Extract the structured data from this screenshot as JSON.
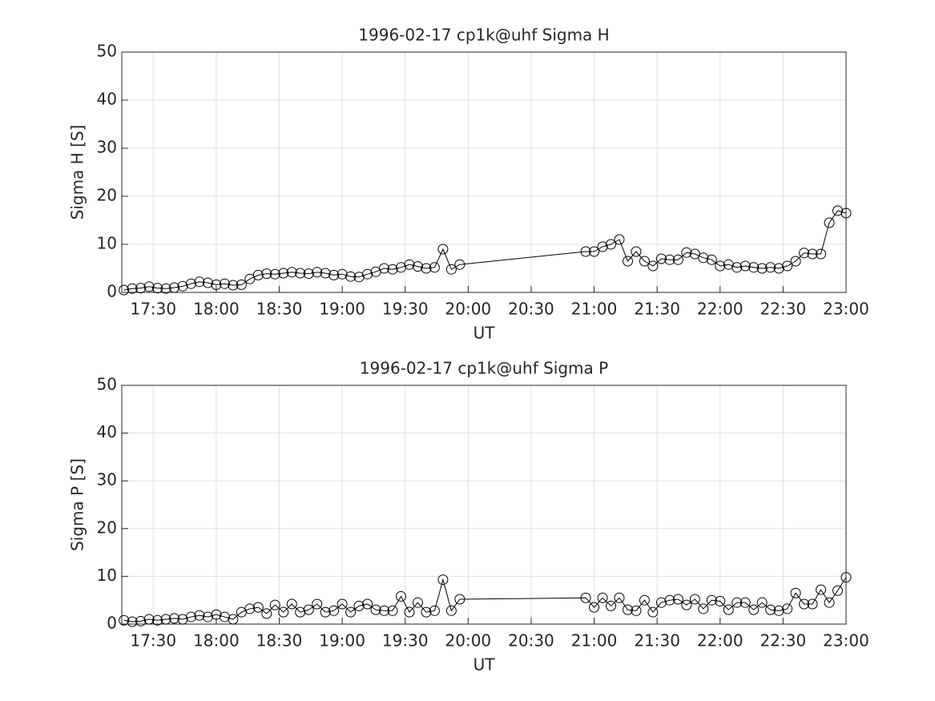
{
  "chart_data": [
    {
      "type": "line",
      "title": "1996-02-17  cp1k@uhf Sigma H",
      "xlabel": "UT",
      "ylabel": "Sigma H [S]",
      "x": [
        "17:16",
        "17:20",
        "17:24",
        "17:28",
        "17:32",
        "17:36",
        "17:40",
        "17:44",
        "17:48",
        "17:52",
        "17:56",
        "18:00",
        "18:04",
        "18:08",
        "18:12",
        "18:16",
        "18:20",
        "18:24",
        "18:28",
        "18:32",
        "18:36",
        "18:40",
        "18:44",
        "18:48",
        "18:52",
        "18:56",
        "19:00",
        "19:04",
        "19:08",
        "19:12",
        "19:16",
        "19:20",
        "19:24",
        "19:28",
        "19:32",
        "19:36",
        "19:40",
        "19:44",
        "19:48",
        "19:52",
        "19:56",
        "20:56",
        "21:00",
        "21:04",
        "21:08",
        "21:12",
        "21:16",
        "21:20",
        "21:24",
        "21:28",
        "21:32",
        "21:36",
        "21:40",
        "21:44",
        "21:48",
        "21:52",
        "21:56",
        "22:00",
        "22:04",
        "22:08",
        "22:12",
        "22:16",
        "22:20",
        "22:24",
        "22:28",
        "22:32",
        "22:36",
        "22:40",
        "22:44",
        "22:48",
        "22:52",
        "22:56",
        "23:00"
      ],
      "series": [
        {
          "name": "Sigma H",
          "color": "#000000",
          "values": [
            0.5,
            0.8,
            0.9,
            1.2,
            0.9,
            0.8,
            1.0,
            1.3,
            1.8,
            2.2,
            2.0,
            1.6,
            1.8,
            1.5,
            1.6,
            2.8,
            3.6,
            3.9,
            3.8,
            4.0,
            4.2,
            4.0,
            3.9,
            4.2,
            4.0,
            3.6,
            3.8,
            3.3,
            3.2,
            3.8,
            4.3,
            5.0,
            4.8,
            5.2,
            5.8,
            5.4,
            5.0,
            5.2,
            9.0,
            4.8,
            5.8,
            8.5,
            8.5,
            9.5,
            10.0,
            11.0,
            6.5,
            8.5,
            6.5,
            5.5,
            7.0,
            6.8,
            6.8,
            8.3,
            8.0,
            7.2,
            6.8,
            5.5,
            5.8,
            5.2,
            5.5,
            5.2,
            5.0,
            5.2,
            5.0,
            5.5,
            6.5,
            8.2,
            8.0,
            8.0,
            14.5,
            17.0,
            16.5
          ]
        }
      ],
      "xlim": [
        "17:15",
        "23:00"
      ],
      "xticks": [
        "17:30",
        "18:00",
        "18:30",
        "19:00",
        "19:30",
        "20:00",
        "20:30",
        "21:00",
        "21:30",
        "22:00",
        "22:30",
        "23:00"
      ],
      "ylim": [
        0,
        50
      ],
      "yticks": [
        0,
        10,
        20,
        30,
        40,
        50
      ],
      "grid": true
    },
    {
      "type": "line",
      "title": "1996-02-17  cp1k@uhf Sigma P",
      "xlabel": "UT",
      "ylabel": "Sigma P [S]",
      "x": [
        "17:16",
        "17:20",
        "17:24",
        "17:28",
        "17:32",
        "17:36",
        "17:40",
        "17:44",
        "17:48",
        "17:52",
        "17:56",
        "18:00",
        "18:04",
        "18:08",
        "18:12",
        "18:16",
        "18:20",
        "18:24",
        "18:28",
        "18:32",
        "18:36",
        "18:40",
        "18:44",
        "18:48",
        "18:52",
        "18:56",
        "19:00",
        "19:04",
        "19:08",
        "19:12",
        "19:16",
        "19:20",
        "19:24",
        "19:28",
        "19:32",
        "19:36",
        "19:40",
        "19:44",
        "19:48",
        "19:52",
        "19:56",
        "20:56",
        "21:00",
        "21:04",
        "21:08",
        "21:12",
        "21:16",
        "21:20",
        "21:24",
        "21:28",
        "21:32",
        "21:36",
        "21:40",
        "21:44",
        "21:48",
        "21:52",
        "21:56",
        "22:00",
        "22:04",
        "22:08",
        "22:12",
        "22:16",
        "22:20",
        "22:24",
        "22:28",
        "22:32",
        "22:36",
        "22:40",
        "22:44",
        "22:48",
        "22:52",
        "22:56",
        "23:00"
      ],
      "series": [
        {
          "name": "Sigma P",
          "color": "#000000",
          "values": [
            0.8,
            0.5,
            0.6,
            1.0,
            0.8,
            1.0,
            1.2,
            1.0,
            1.5,
            1.8,
            1.5,
            2.0,
            1.5,
            1.0,
            2.5,
            3.2,
            3.5,
            2.2,
            4.0,
            2.5,
            4.2,
            2.5,
            3.0,
            4.2,
            2.5,
            2.8,
            4.2,
            2.5,
            3.8,
            4.2,
            3.0,
            2.8,
            2.8,
            5.8,
            2.5,
            4.5,
            2.5,
            2.8,
            9.3,
            2.8,
            5.2,
            5.5,
            3.5,
            5.5,
            3.8,
            5.5,
            3.0,
            2.8,
            5.0,
            2.5,
            4.5,
            5.0,
            5.2,
            4.0,
            5.2,
            3.2,
            5.0,
            4.8,
            3.0,
            4.5,
            4.5,
            3.0,
            4.5,
            3.0,
            2.8,
            3.2,
            6.5,
            4.2,
            4.2,
            7.2,
            4.5,
            7.0,
            9.8
          ]
        }
      ],
      "xlim": [
        "17:15",
        "23:00"
      ],
      "xticks": [
        "17:30",
        "18:00",
        "18:30",
        "19:00",
        "19:30",
        "20:00",
        "20:30",
        "21:00",
        "21:30",
        "22:00",
        "22:30",
        "23:00"
      ],
      "ylim": [
        0,
        50
      ],
      "yticks": [
        0,
        10,
        20,
        30,
        40,
        50
      ],
      "grid": true
    }
  ]
}
